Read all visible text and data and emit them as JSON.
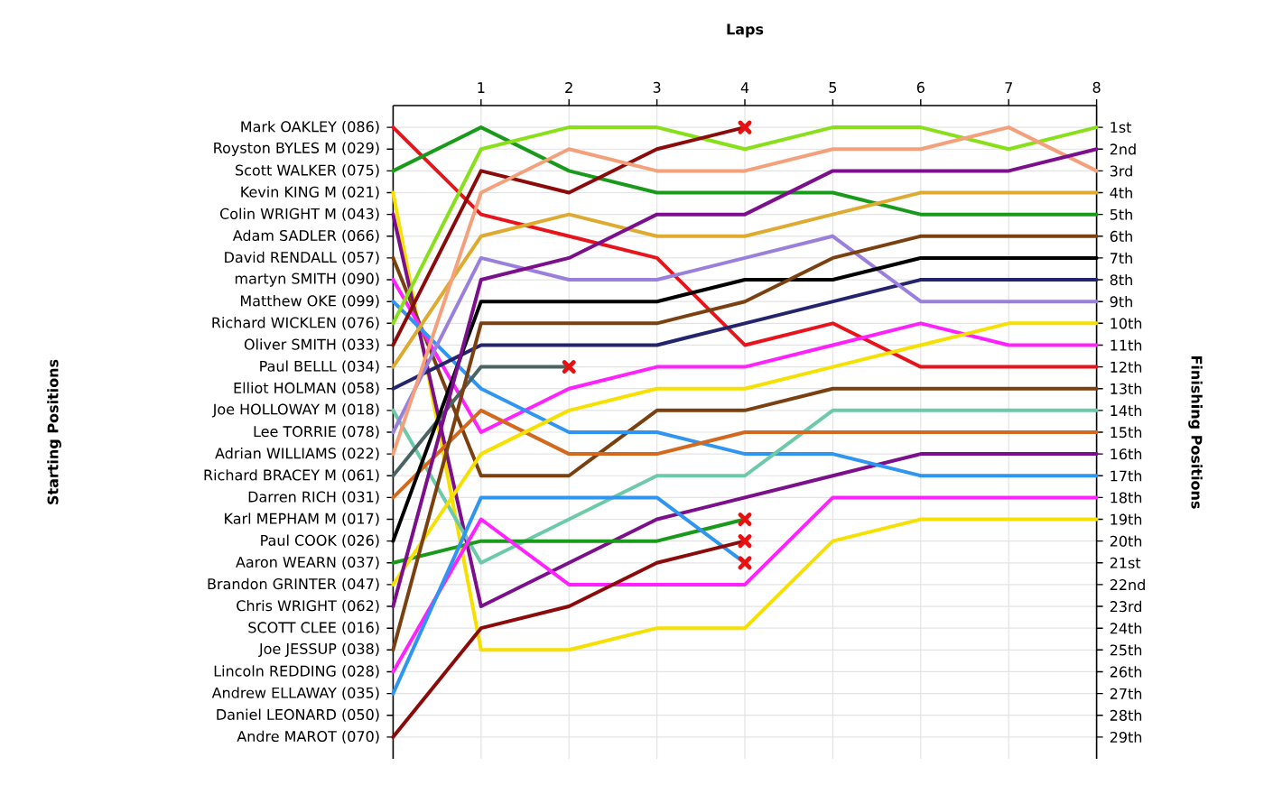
{
  "chart_data": {
    "type": "line",
    "xlabel": "Laps",
    "ylabel": "Finishing Positions",
    "x": [
      0,
      1,
      2,
      3,
      4,
      5,
      6,
      7,
      8
    ],
    "xlim": [
      0,
      8
    ],
    "xticks": [
      1,
      2,
      3,
      4,
      5,
      6,
      7,
      8
    ],
    "ylim": [
      30,
      0
    ],
    "yticks": [
      {
        "value": 1,
        "label": "1st"
      },
      {
        "value": 2,
        "label": "2nd"
      },
      {
        "value": 3,
        "label": "3rd"
      },
      {
        "value": 4,
        "label": "4th"
      },
      {
        "value": 5,
        "label": "5th"
      },
      {
        "value": 6,
        "label": "6th"
      },
      {
        "value": 7,
        "label": "7th"
      },
      {
        "value": 8,
        "label": "8th"
      },
      {
        "value": 9,
        "label": "9th"
      },
      {
        "value": 10,
        "label": "10th"
      },
      {
        "value": 11,
        "label": "11th"
      },
      {
        "value": 12,
        "label": "12th"
      },
      {
        "value": 13,
        "label": "13th"
      },
      {
        "value": 14,
        "label": "14th"
      },
      {
        "value": 15,
        "label": "15th"
      },
      {
        "value": 16,
        "label": "16th"
      },
      {
        "value": 17,
        "label": "17th"
      },
      {
        "value": 18,
        "label": "18th"
      },
      {
        "value": 19,
        "label": "19th"
      },
      {
        "value": 20,
        "label": "20th"
      },
      {
        "value": 21,
        "label": "21st"
      },
      {
        "value": 22,
        "label": "22nd"
      },
      {
        "value": 23,
        "label": "23rd"
      },
      {
        "value": 24,
        "label": "24th"
      },
      {
        "value": 25,
        "label": "25th"
      },
      {
        "value": 26,
        "label": "26th"
      },
      {
        "value": 27,
        "label": "27th"
      },
      {
        "value": 28,
        "label": "28th"
      },
      {
        "value": 29,
        "label": "29th"
      }
    ],
    "annotations": [
      "Starting Positions",
      "Mark OAKLEY (086)",
      "Royston BYLES M (029)",
      "Scott WALKER (075)",
      "Kevin KING M (021)",
      "Colin WRIGHT M (043)",
      "Adam SADLER (066)",
      "David RENDALL (057)",
      "martyn SMITH (090)",
      "Matthew OKE (099)",
      "Richard WICKLEN (076)",
      "Oliver SMITH (033)",
      "Paul BELLL (034)",
      "Elliot HOLMAN (058)",
      "Joe HOLLOWAY M (018)",
      "Lee TORRIE (078)",
      "Adrian WILLIAMS (022)",
      "Richard BRACEY M (061)",
      "Darren RICH (031)",
      "Karl MEPHAM M (017)",
      "Paul COOK (026)",
      "Aaron WEARN (037)",
      "Brandon GRINTER (047)",
      "Chris WRIGHT (062)",
      "SCOTT CLEE (016)",
      "Joe JESSUP (038)",
      "Lincoln REDDING (028)",
      "Andrew ELLAWAY (035)",
      "Daniel LEONARD (050)",
      "Andre MAROT (070)"
    ],
    "grid": true,
    "marker": "none",
    "line_style": "solid",
    "series": [
      {
        "color": "#e8141c",
        "values": [
          1,
          5,
          6,
          7,
          11,
          10,
          12,
          12,
          12
        ]
      },
      {
        "color": "#1a9a1a",
        "values": [
          3,
          1,
          3,
          4,
          4,
          4,
          5,
          5,
          5
        ]
      },
      {
        "color": "#f5e000",
        "values": [
          4,
          25,
          25,
          24,
          24,
          20,
          19,
          19,
          19
        ]
      },
      {
        "color": "#7b0f8c",
        "values": [
          5,
          23,
          21,
          19,
          18,
          17,
          16,
          16,
          16
        ]
      },
      {
        "color": "#7a4010",
        "values": [
          7,
          17,
          17,
          14,
          14,
          13,
          13,
          13,
          13
        ]
      },
      {
        "color": "#ff22ff",
        "values": [
          8,
          15,
          13,
          12,
          12,
          11,
          10,
          11,
          11
        ]
      },
      {
        "color": "#2f95f0",
        "values": [
          9,
          13,
          15,
          15,
          16,
          16,
          17,
          17,
          17
        ]
      },
      {
        "color": "#88e01a",
        "values": [
          10,
          2,
          1,
          1,
          2,
          1,
          1,
          2,
          1
        ]
      },
      {
        "color": "#8b0a0a",
        "values": [
          11,
          3,
          4,
          2,
          1,
          null,
          null,
          null,
          null
        ]
      },
      {
        "color": "#deaa30",
        "values": [
          12,
          6,
          5,
          6,
          6,
          5,
          4,
          4,
          4
        ]
      },
      {
        "color": "#23236e",
        "values": [
          13,
          11,
          11,
          11,
          10,
          9,
          8,
          8,
          8
        ]
      },
      {
        "color": "#6ccaa8",
        "values": [
          14,
          21,
          19,
          17,
          17,
          14,
          14,
          14,
          14
        ]
      },
      {
        "color": "#9a80dc",
        "values": [
          15,
          7,
          8,
          8,
          7,
          6,
          9,
          9,
          9
        ]
      },
      {
        "color": "#4a6464",
        "values": [
          17,
          12,
          12,
          null,
          null,
          null,
          null,
          null,
          null
        ]
      },
      {
        "color": "#f4a07a",
        "values": [
          16,
          4,
          2,
          3,
          3,
          2,
          2,
          1,
          3
        ]
      },
      {
        "color": "#d2691e",
        "values": [
          18,
          14,
          16,
          16,
          15,
          15,
          15,
          15,
          15
        ]
      },
      {
        "color": "#000000",
        "values": [
          20,
          9,
          9,
          9,
          8,
          8,
          7,
          7,
          7
        ]
      },
      {
        "color": "#1a9a1a",
        "values": [
          21,
          20,
          20,
          20,
          19,
          null,
          null,
          null,
          null
        ]
      },
      {
        "color": "#f5e000",
        "values": [
          22,
          16,
          14,
          13,
          13,
          12,
          11,
          10,
          10
        ]
      },
      {
        "color": "#7b0f8c",
        "values": [
          23,
          8,
          7,
          5,
          5,
          3,
          3,
          3,
          2
        ]
      },
      {
        "color": "#7a4010",
        "values": [
          25,
          10,
          10,
          10,
          9,
          7,
          6,
          6,
          6
        ]
      },
      {
        "color": "#ff22ff",
        "values": [
          26,
          19,
          22,
          22,
          22,
          18,
          18,
          18,
          18
        ]
      },
      {
        "color": "#2f95f0",
        "values": [
          27,
          18,
          18,
          18,
          21,
          null,
          null,
          null,
          null
        ]
      },
      {
        "color": "#8b0a0a",
        "values": [
          29,
          24,
          23,
          21,
          20,
          null,
          null,
          null,
          null
        ]
      },
      {
        "type": "scatter",
        "marker": "cross",
        "color": "#e81010",
        "values": [
          null,
          null,
          null,
          null,
          1,
          null,
          null,
          null,
          null
        ]
      },
      {
        "type": "scatter",
        "marker": "cross",
        "color": "#e81010",
        "values": [
          null,
          null,
          12,
          null,
          null,
          null,
          null,
          null,
          null
        ]
      },
      {
        "type": "scatter",
        "marker": "cross",
        "color": "#e81010",
        "values": [
          null,
          null,
          null,
          null,
          19,
          null,
          null,
          null,
          null
        ]
      },
      {
        "type": "scatter",
        "marker": "cross",
        "color": "#e81010",
        "values": [
          null,
          null,
          null,
          null,
          20,
          null,
          null,
          null,
          null
        ]
      },
      {
        "type": "scatter",
        "marker": "cross",
        "color": "#e81010",
        "values": [
          null,
          null,
          null,
          null,
          21,
          null,
          null,
          null,
          null
        ]
      }
    ]
  }
}
